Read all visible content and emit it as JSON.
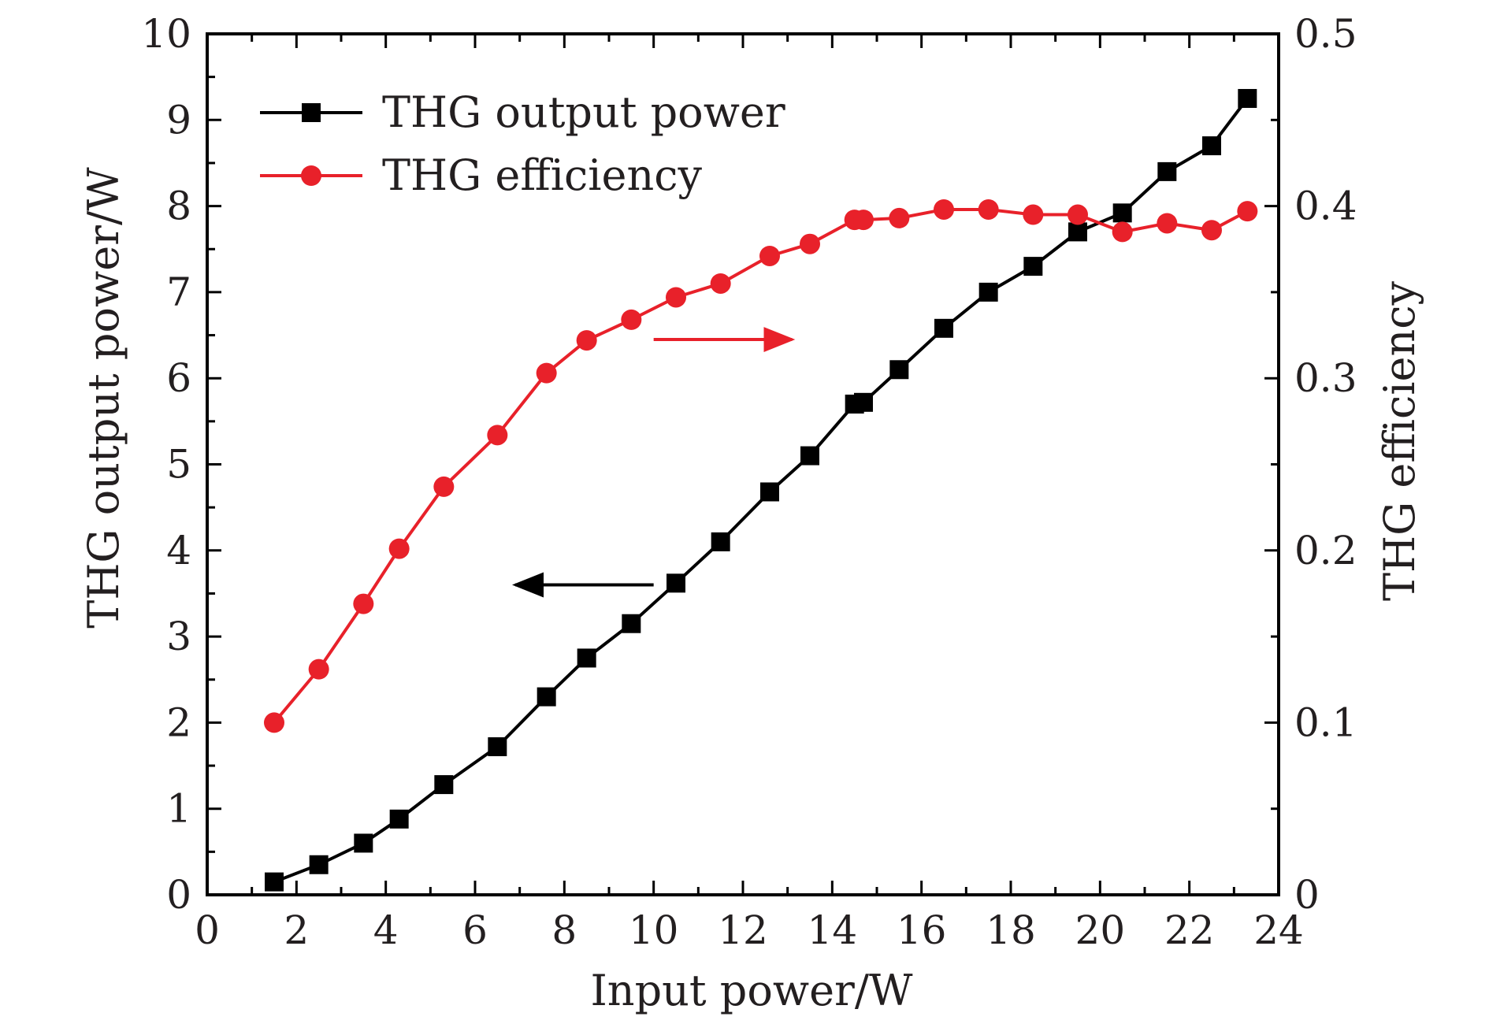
{
  "chart_data": {
    "type": "line",
    "title": "",
    "xlabel": "Input power/W",
    "ylabel": "THG output power/W",
    "y2label": "THG efficiency",
    "xlim": [
      0,
      24
    ],
    "ylim": [
      0,
      10
    ],
    "y2lim": [
      0,
      0.5
    ],
    "x_ticks": [
      0,
      2,
      4,
      6,
      8,
      10,
      12,
      14,
      16,
      18,
      20,
      22,
      24
    ],
    "y_ticks": [
      0,
      1,
      2,
      3,
      4,
      5,
      6,
      7,
      8,
      9,
      10
    ],
    "y2_ticks": [
      "0",
      "0.1",
      "0.2",
      "0.3",
      "0.4",
      "0.5"
    ],
    "grid": false,
    "legend_position": "top-left",
    "series": [
      {
        "name": "THG output power",
        "axis": "left",
        "color": "#000000",
        "marker": "square",
        "x": [
          1.5,
          2.5,
          3.5,
          4.3,
          5.3,
          6.5,
          7.6,
          8.5,
          9.5,
          10.5,
          11.5,
          12.6,
          13.5,
          14.5,
          14.7,
          15.5,
          16.5,
          17.5,
          18.5,
          19.5,
          20.5,
          21.5,
          22.5,
          23.3
        ],
        "values": [
          0.15,
          0.35,
          0.6,
          0.88,
          1.28,
          1.72,
          2.3,
          2.75,
          3.15,
          3.62,
          4.1,
          4.68,
          5.1,
          5.7,
          5.72,
          6.1,
          6.58,
          7.0,
          7.3,
          7.7,
          7.92,
          8.4,
          8.7,
          9.25
        ]
      },
      {
        "name": "THG efficiency",
        "axis": "right",
        "color": "#e8212a",
        "marker": "circle",
        "x": [
          1.5,
          2.5,
          3.5,
          4.3,
          5.3,
          6.5,
          7.6,
          8.5,
          9.5,
          10.5,
          11.5,
          12.6,
          13.5,
          14.5,
          14.7,
          15.5,
          16.5,
          17.5,
          18.5,
          19.5,
          20.5,
          21.5,
          22.5,
          23.3
        ],
        "values": [
          0.1,
          0.131,
          0.169,
          0.201,
          0.237,
          0.267,
          0.303,
          0.322,
          0.334,
          0.347,
          0.355,
          0.371,
          0.378,
          0.392,
          0.392,
          0.393,
          0.398,
          0.398,
          0.395,
          0.395,
          0.385,
          0.39,
          0.386,
          0.397
        ]
      }
    ],
    "annotations": [
      {
        "type": "arrow",
        "points_to": "left",
        "color": "#000000",
        "from": [
          10.0,
          3.6
        ],
        "to": [
          6.9,
          3.6
        ]
      },
      {
        "type": "arrow",
        "points_to": "right",
        "color": "#e8212a",
        "from": [
          10.0,
          6.45
        ],
        "to": [
          13.1,
          6.45
        ]
      }
    ]
  }
}
